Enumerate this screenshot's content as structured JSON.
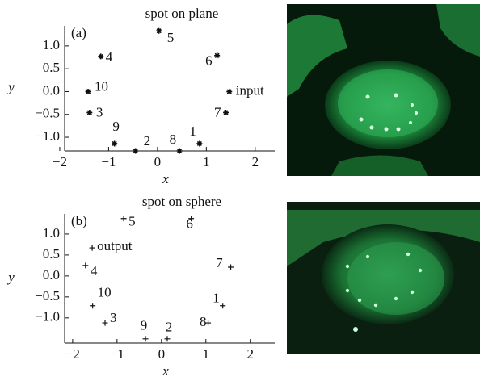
{
  "chart_data": [
    {
      "type": "scatter",
      "title": "spot on plane",
      "panel": "(a)",
      "x_label": "x",
      "y_label": "y",
      "marker": "star",
      "color": "#111111",
      "labels": [
        "5",
        "4",
        "6",
        "10",
        "input",
        "3",
        "7",
        "9",
        "2",
        "8",
        "1"
      ],
      "x": [
        0.03,
        -1.16,
        1.22,
        -1.42,
        1.47,
        -1.39,
        1.4,
        -0.88,
        -0.45,
        0.45,
        0.86
      ],
      "values": [
        1.33,
        0.77,
        0.79,
        0.0,
        0.0,
        -0.46,
        -0.46,
        -1.14,
        -1.3,
        -1.3,
        -1.14
      ],
      "xlim": [
        -1.9,
        2.4
      ],
      "ylim": [
        -1.3,
        1.44
      ],
      "xticks": [
        {
          "value": -2,
          "label": "−2"
        },
        {
          "value": -1,
          "label": "−1"
        },
        0,
        1,
        2
      ],
      "yticks": [
        {
          "value": 1,
          "label": "1.0"
        },
        0.5,
        {
          "value": 0,
          "label": "0.0"
        },
        {
          "value": -0.5,
          "label": "−0.5"
        },
        {
          "value": -1,
          "label": "−1.0"
        }
      ]
    },
    {
      "type": "scatter",
      "title": "spot on sphere",
      "panel": "(b)",
      "x_label": "x",
      "y_label": "y",
      "marker": "plus",
      "color": "#111111",
      "labels": [
        "5",
        "6",
        "output",
        "4",
        "7",
        "10",
        "1",
        "3",
        "8",
        "9",
        "2"
      ],
      "x": [
        -0.85,
        0.67,
        -1.56,
        -1.71,
        1.56,
        -1.55,
        1.38,
        -1.27,
        1.05,
        -0.36,
        0.13
      ],
      "values": [
        1.37,
        1.37,
        0.67,
        0.25,
        0.21,
        -0.71,
        -0.71,
        -1.12,
        -1.12,
        -1.5,
        -1.5
      ],
      "xlim": [
        -2.18,
        2.55
      ],
      "ylim": [
        -1.6,
        1.48
      ],
      "xticks": [
        {
          "value": -2,
          "label": "−2"
        },
        {
          "value": -1,
          "label": "−1"
        },
        0,
        1,
        2
      ],
      "yticks": [
        {
          "value": 1,
          "label": "1.0"
        },
        0.5,
        {
          "value": 0,
          "label": "0.0"
        },
        {
          "value": -0.5,
          "label": "−0.5"
        },
        {
          "value": -1,
          "label": "−1.0"
        }
      ]
    }
  ]
}
